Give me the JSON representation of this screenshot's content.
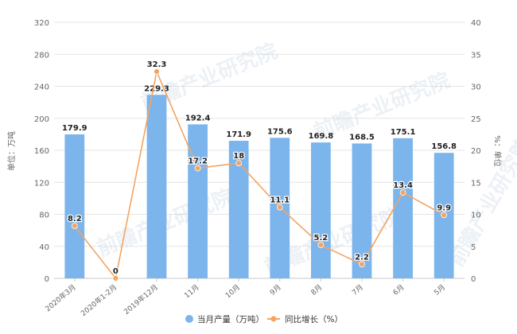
{
  "chart_data": {
    "type": "bar",
    "categories": [
      "2020年3月",
      "2020年1-2月",
      "2019年12月",
      "11月",
      "10月",
      "9月",
      "8月",
      "7月",
      "6月",
      "5月"
    ],
    "series": [
      {
        "name": "当月产量（万吨）",
        "type": "bar",
        "axis": "left",
        "color": "#7cb5ec",
        "values": [
          179.9,
          null,
          229.3,
          192.4,
          171.9,
          175.6,
          169.8,
          168.5,
          175.1,
          156.8
        ],
        "labels": [
          "179.9",
          "",
          "229.3",
          "192.4",
          "171.9",
          "175.6",
          "169.8",
          "168.5",
          "175.1",
          "156.8"
        ]
      },
      {
        "name": "同比增长（%）",
        "type": "line",
        "axis": "right",
        "color": "#f4a460",
        "values": [
          8.2,
          0,
          32.3,
          17.2,
          18,
          11.1,
          5.2,
          2.2,
          13.4,
          9.9
        ],
        "labels": [
          "8.2",
          "0",
          "32.3",
          "17.2",
          "18",
          "11.1",
          "5.2",
          "2.2",
          "13.4",
          "9.9"
        ]
      }
    ],
    "ylabel": "单位：万吨",
    "y2label": "%：单位",
    "ylim": [
      0,
      320
    ],
    "y2lim": [
      0,
      40
    ],
    "yticks": [
      "0",
      "40",
      "80",
      "120",
      "160",
      "200",
      "240",
      "280",
      "320"
    ],
    "y2ticks": [
      "0",
      "5",
      "10",
      "15",
      "20",
      "25",
      "30",
      "35",
      "40"
    ],
    "grid": true,
    "legend_position": "bottom"
  },
  "watermark": "前瞻产业研究院"
}
